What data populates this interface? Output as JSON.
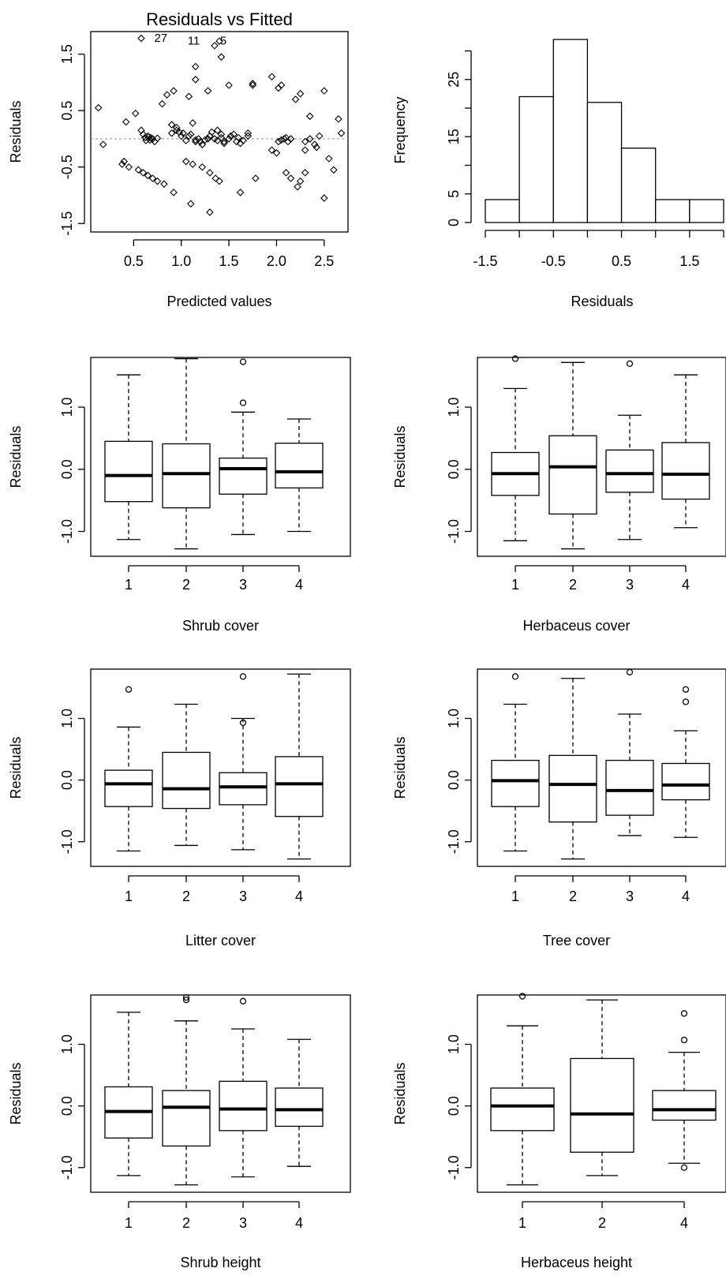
{
  "chart_data": [
    {
      "type": "scatter",
      "title": "Residuals vs Fitted",
      "xlabel": "Predicted values",
      "ylabel": "Residuals",
      "xlim": [
        0.05,
        2.75
      ],
      "ylim": [
        -1.65,
        1.9
      ],
      "xticks": [
        "0.5",
        "1.0",
        "1.5",
        "2.0",
        "2.5"
      ],
      "yticks": [
        "-1.5",
        "-0.5",
        "0.5",
        "1.5"
      ],
      "reference_line": 0,
      "point_labels": [
        {
          "text": "27",
          "x": 0.65,
          "y": 1.78
        },
        {
          "text": "11",
          "x": 1.0,
          "y": 1.73
        },
        {
          "text": "5",
          "x": 1.34,
          "y": 1.73
        }
      ],
      "x": [
        0.13,
        0.18,
        0.42,
        0.38,
        0.52,
        0.58,
        0.6,
        0.65,
        0.68,
        0.75,
        0.8,
        0.85,
        0.9,
        0.95,
        0.98,
        1.02,
        1.08,
        1.12,
        1.15,
        1.2,
        1.22,
        1.28,
        1.32,
        1.38,
        1.42,
        1.45,
        1.52,
        1.58,
        1.62,
        1.7,
        1.75,
        0.62,
        0.63,
        0.66,
        0.67,
        0.7,
        0.72,
        0.9,
        0.95,
        1.0,
        1.05,
        1.1,
        1.15,
        1.18,
        1.22,
        1.25,
        1.3,
        1.35,
        1.38,
        1.42,
        1.45,
        1.5,
        1.55,
        1.6,
        1.65,
        1.7,
        2.02,
        2.05,
        2.08,
        2.1,
        2.12,
        2.15,
        2.3,
        2.35,
        2.4,
        2.42,
        2.45,
        2.65,
        2.68,
        2.6,
        0.4,
        0.45,
        0.55,
        0.6,
        0.65,
        0.7,
        0.75,
        0.82,
        0.92,
        1.05,
        1.12,
        1.22,
        1.3,
        1.36,
        1.4,
        1.62,
        1.78,
        1.95,
        2.0,
        2.1,
        2.15,
        2.22,
        2.25,
        2.3,
        2.5,
        2.55,
        0.58,
        0.92,
        1.08,
        1.15,
        1.28,
        1.42,
        1.5,
        1.95,
        2.05,
        2.25,
        2.5,
        1.15,
        1.35,
        1.4,
        1.75,
        2.02,
        2.2,
        2.35,
        1.1,
        1.3,
        2.3
      ],
      "y": [
        0.55,
        -0.1,
        0.3,
        -0.45,
        0.45,
        0.15,
        0.08,
        0.05,
        0.02,
        0.01,
        0.62,
        0.78,
        0.25,
        0.2,
        0.12,
        0.1,
        0.05,
        0.28,
        -0.02,
        -0.05,
        -0.1,
        0.0,
        0.12,
        0.15,
        0.08,
        -0.08,
        0.05,
        -0.05,
        -0.08,
        0.1,
        0.98,
        0.02,
        -0.03,
        0.03,
        -0.02,
        0.0,
        -0.05,
        0.1,
        0.15,
        0.05,
        -0.03,
        0.08,
        -0.05,
        0.0,
        -0.1,
        -0.02,
        0.05,
        0.0,
        -0.03,
        0.02,
        -0.05,
        0.0,
        0.08,
        0.02,
        -0.03,
        0.05,
        -0.05,
        -0.02,
        0.0,
        0.02,
        -0.05,
        0.0,
        -0.05,
        0.0,
        -0.1,
        -0.15,
        0.05,
        0.35,
        0.1,
        -0.55,
        -0.4,
        -0.5,
        -0.55,
        -0.6,
        -0.65,
        -0.7,
        -0.75,
        -0.8,
        -0.95,
        -0.4,
        -0.45,
        -0.5,
        -0.6,
        -0.7,
        -0.75,
        -0.95,
        -0.7,
        -0.2,
        -0.25,
        -0.6,
        -0.7,
        -0.85,
        -0.75,
        -0.6,
        -1.05,
        -0.35,
        1.78,
        0.85,
        0.75,
        1.05,
        0.85,
        1.45,
        0.95,
        1.1,
        0.95,
        0.8,
        0.85,
        1.28,
        1.65,
        1.73,
        0.95,
        0.9,
        0.7,
        0.4,
        -1.15,
        -1.3,
        -0.2
      ]
    },
    {
      "type": "bar",
      "subtype": "histogram",
      "xlabel": "Residuals",
      "ylabel": "Frequency",
      "bin_edges": [
        -1.5,
        -1.0,
        -0.5,
        0.0,
        0.5,
        1.0,
        1.5,
        2.0
      ],
      "values": [
        4,
        22,
        32,
        21,
        13,
        4,
        4
      ],
      "xticks": [
        "-1.5",
        "-0.5",
        "0.5",
        "1.5"
      ],
      "yticks": [
        "0",
        "5",
        "15",
        "25"
      ],
      "ylim": [
        0,
        32
      ]
    },
    {
      "type": "box",
      "xlabel": "Shrub cover",
      "ylabel": "Residuals",
      "categories": [
        "1",
        "2",
        "3",
        "4"
      ],
      "yticks": [
        "-1.0",
        "0.0",
        "1.0"
      ],
      "ylim": [
        -1.4,
        1.8
      ],
      "boxes": [
        {
          "low": -1.13,
          "q1": -0.52,
          "median": -0.1,
          "q3": 0.45,
          "high": 1.52,
          "outliers": []
        },
        {
          "low": -1.28,
          "q1": -0.62,
          "median": -0.07,
          "q3": 0.41,
          "high": 1.78,
          "outliers": []
        },
        {
          "low": -1.05,
          "q1": -0.4,
          "median": 0.01,
          "q3": 0.18,
          "high": 0.92,
          "outliers": [
            1.73,
            1.07
          ]
        },
        {
          "low": -1.0,
          "q1": -0.3,
          "median": -0.04,
          "q3": 0.42,
          "high": 0.81,
          "outliers": []
        }
      ]
    },
    {
      "type": "box",
      "xlabel": "Herbaceus cover",
      "ylabel": "Residuals",
      "categories": [
        "1",
        "2",
        "3",
        "4"
      ],
      "yticks": [
        "-1.0",
        "0.0",
        "1.0"
      ],
      "ylim": [
        -1.4,
        1.8
      ],
      "boxes": [
        {
          "low": -1.15,
          "q1": -0.42,
          "median": -0.07,
          "q3": 0.27,
          "high": 1.3,
          "outliers": [
            1.78
          ]
        },
        {
          "low": -1.28,
          "q1": -0.72,
          "median": 0.04,
          "q3": 0.54,
          "high": 1.72,
          "outliers": []
        },
        {
          "low": -1.13,
          "q1": -0.37,
          "median": -0.07,
          "q3": 0.31,
          "high": 0.87,
          "outliers": [
            1.7
          ]
        },
        {
          "low": -0.94,
          "q1": -0.48,
          "median": -0.08,
          "q3": 0.43,
          "high": 1.52,
          "outliers": []
        }
      ]
    },
    {
      "type": "box",
      "xlabel": "Litter cover",
      "ylabel": "Residuals",
      "categories": [
        "1",
        "2",
        "3",
        "4"
      ],
      "yticks": [
        "-1.0",
        "0.0",
        "1.0"
      ],
      "ylim": [
        -1.4,
        1.8
      ],
      "boxes": [
        {
          "low": -1.15,
          "q1": -0.43,
          "median": -0.06,
          "q3": 0.16,
          "high": 0.86,
          "outliers": [
            1.47
          ]
        },
        {
          "low": -1.06,
          "q1": -0.46,
          "median": -0.14,
          "q3": 0.45,
          "high": 1.23,
          "outliers": []
        },
        {
          "low": -1.13,
          "q1": -0.4,
          "median": -0.11,
          "q3": 0.12,
          "high": 1.0,
          "outliers": [
            1.68,
            0.93
          ]
        },
        {
          "low": -1.28,
          "q1": -0.59,
          "median": -0.06,
          "q3": 0.38,
          "high": 1.72,
          "outliers": []
        }
      ]
    },
    {
      "type": "box",
      "xlabel": "Tree cover",
      "ylabel": "Residuals",
      "categories": [
        "1",
        "2",
        "3",
        "4"
      ],
      "yticks": [
        "-1.0",
        "0.0",
        "1.0"
      ],
      "ylim": [
        -1.4,
        1.8
      ],
      "boxes": [
        {
          "low": -1.15,
          "q1": -0.43,
          "median": -0.01,
          "q3": 0.32,
          "high": 1.23,
          "outliers": [
            1.68
          ]
        },
        {
          "low": -1.28,
          "q1": -0.68,
          "median": -0.07,
          "q3": 0.4,
          "high": 1.65,
          "outliers": []
        },
        {
          "low": -0.9,
          "q1": -0.57,
          "median": -0.17,
          "q3": 0.32,
          "high": 1.07,
          "outliers": [
            1.75
          ]
        },
        {
          "low": -0.93,
          "q1": -0.32,
          "median": -0.08,
          "q3": 0.27,
          "high": 0.8,
          "outliers": [
            1.47,
            1.27
          ]
        }
      ]
    },
    {
      "type": "box",
      "xlabel": "Shrub height",
      "ylabel": "Residuals",
      "categories": [
        "1",
        "2",
        "3",
        "4"
      ],
      "yticks": [
        "-1.0",
        "0.0",
        "1.0"
      ],
      "ylim": [
        -1.4,
        1.8
      ],
      "boxes": [
        {
          "low": -1.13,
          "q1": -0.52,
          "median": -0.09,
          "q3": 0.31,
          "high": 1.52,
          "outliers": []
        },
        {
          "low": -1.28,
          "q1": -0.65,
          "median": -0.02,
          "q3": 0.25,
          "high": 1.38,
          "outliers": [
            1.76,
            1.72
          ]
        },
        {
          "low": -1.15,
          "q1": -0.4,
          "median": -0.05,
          "q3": 0.4,
          "high": 1.25,
          "outliers": [
            1.7
          ]
        },
        {
          "low": -0.98,
          "q1": -0.33,
          "median": -0.06,
          "q3": 0.29,
          "high": 1.08,
          "outliers": []
        }
      ]
    },
    {
      "type": "box",
      "xlabel": "Herbaceus height",
      "ylabel": "Residuals",
      "categories": [
        "1",
        "2",
        "4"
      ],
      "yticks": [
        "-1.0",
        "0.0",
        "1.0"
      ],
      "ylim": [
        -1.4,
        1.8
      ],
      "boxes": [
        {
          "low": -1.28,
          "q1": -0.4,
          "median": 0.0,
          "q3": 0.29,
          "high": 1.3,
          "outliers": [
            1.78
          ]
        },
        {
          "low": -1.13,
          "q1": -0.75,
          "median": -0.13,
          "q3": 0.77,
          "high": 1.72,
          "outliers": []
        },
        {
          "low": -0.93,
          "q1": -0.23,
          "median": -0.06,
          "q3": 0.25,
          "high": 0.87,
          "outliers": [
            1.5,
            1.07,
            -1.0
          ]
        }
      ]
    }
  ]
}
